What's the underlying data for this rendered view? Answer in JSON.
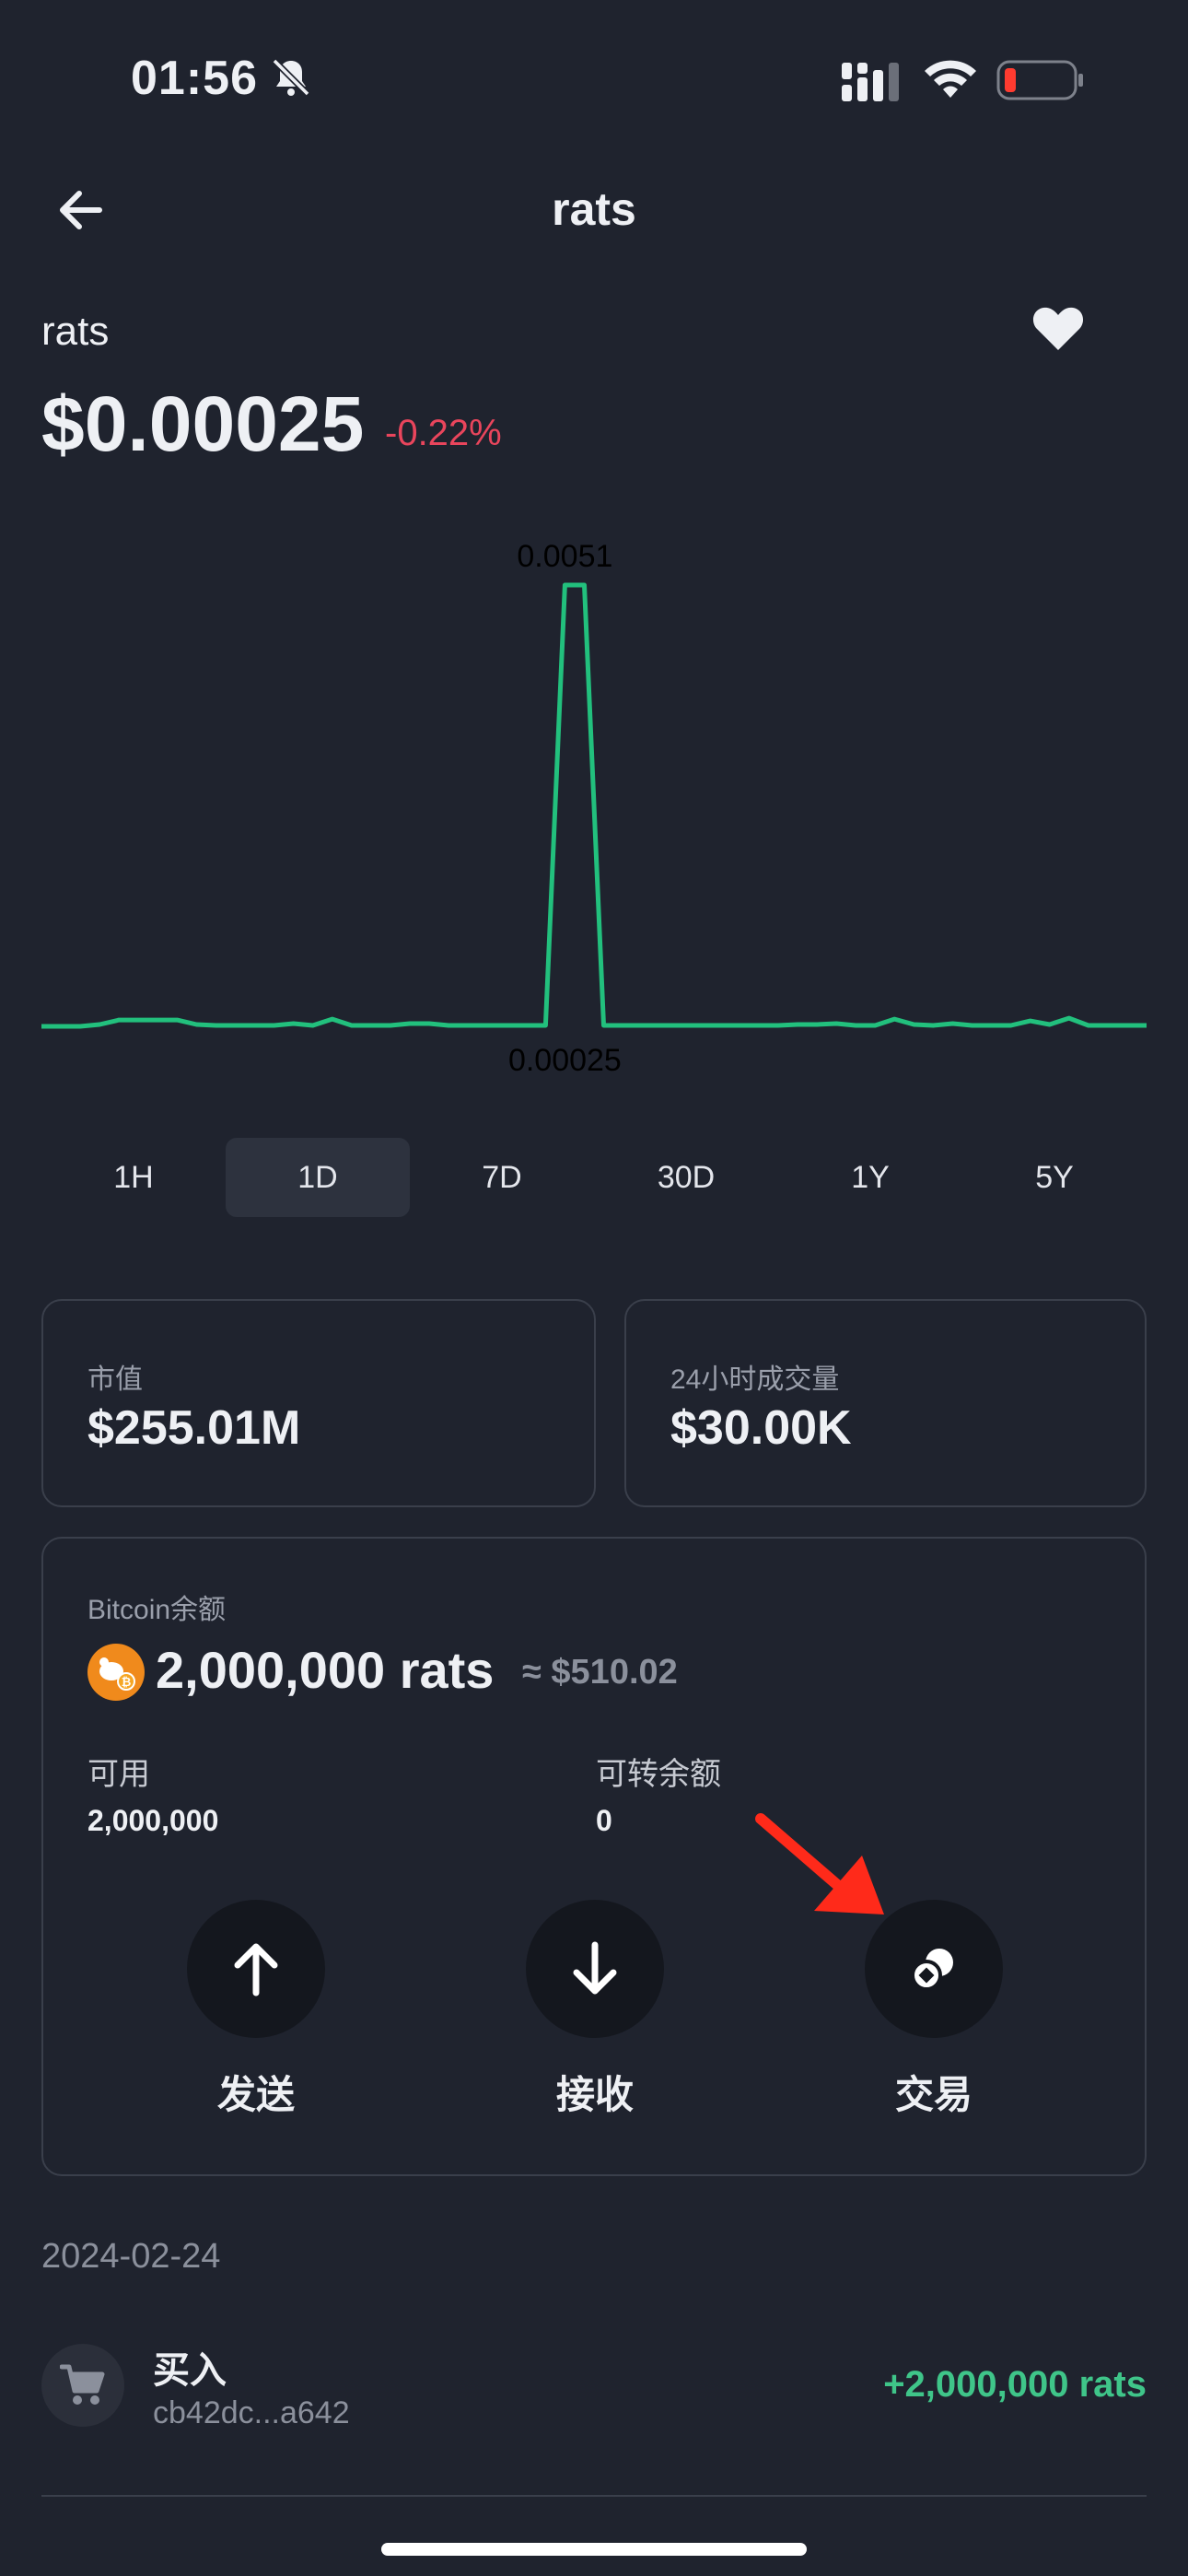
{
  "status_bar": {
    "time": "01:56"
  },
  "header": {
    "title": "rats"
  },
  "asset": {
    "name": "rats",
    "price": "$0.00025",
    "change": "-0.22%"
  },
  "chart_data": {
    "type": "line",
    "max_label": "0.0051",
    "min_label": "0.00025",
    "color": "#22c07d",
    "values": [
      0.00025,
      0.00025,
      0.00025,
      0.00027,
      0.00032,
      0.00032,
      0.00032,
      0.00032,
      0.00027,
      0.00026,
      0.00026,
      0.00026,
      0.00026,
      0.00028,
      0.00026,
      0.00033,
      0.00026,
      0.00026,
      0.00026,
      0.00028,
      0.00028,
      0.00026,
      0.00026,
      0.00026,
      0.00026,
      0.00026,
      0.00026,
      0.0051,
      0.0051,
      0.00026,
      0.00026,
      0.00026,
      0.00026,
      0.00026,
      0.00026,
      0.00026,
      0.00026,
      0.00026,
      0.00026,
      0.00027,
      0.00027,
      0.00028,
      0.00026,
      0.00026,
      0.00033,
      0.00027,
      0.00026,
      0.00028,
      0.00026,
      0.00026,
      0.00026,
      0.00031,
      0.00027,
      0.00034,
      0.00026,
      0.00026,
      0.00026,
      0.00026
    ]
  },
  "ranges": [
    "1H",
    "1D",
    "7D",
    "30D",
    "1Y",
    "5Y"
  ],
  "active_range": "1D",
  "stats": {
    "market_cap_label": "市值",
    "market_cap_value": "$255.01M",
    "volume_label": "24小时成交量",
    "volume_value": "$30.00K"
  },
  "balance": {
    "label": "Bitcoin余额",
    "amount": "2,000,000 rats",
    "fiat": "≈ $510.02",
    "available_label": "可用",
    "available_value": "2,000,000",
    "transferable_label": "可转余额",
    "transferable_value": "0"
  },
  "actions": {
    "send": "发送",
    "receive": "接收",
    "trade": "交易"
  },
  "transactions": {
    "date": "2024-02-24",
    "items": [
      {
        "title": "买入",
        "hash": "cb42dc...a642",
        "amount": "+2,000,000 rats"
      }
    ]
  }
}
